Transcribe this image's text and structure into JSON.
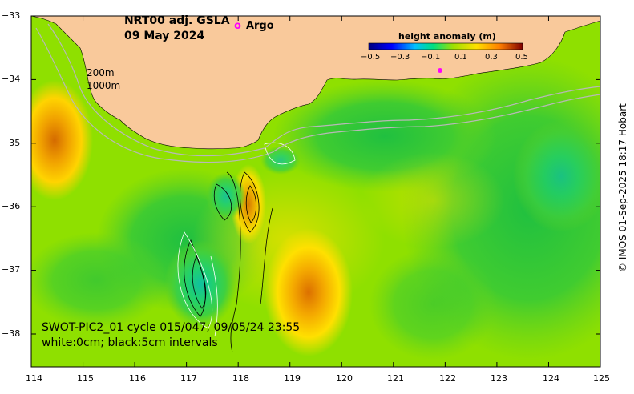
{
  "title": {
    "line1": "NRT00 adj. GSLA",
    "line2": "09 May 2024"
  },
  "legend": {
    "argo_marker": "o",
    "argo_label": "Argo"
  },
  "isobaths": {
    "shallow": "200m",
    "deep": "1000m"
  },
  "swath": {
    "pass_label": "SWOT-PIC2_01 cycle 015/047; 09/05/24 23:55",
    "contour_note": "white:0cm; black:5cm intervals"
  },
  "credit": "© IMOS 01-Sep-2025 18:17 Hobart",
  "colorbar": {
    "title": "height anomaly (m)",
    "ticks": [
      "−0.5",
      "−0.3",
      "−0.1",
      "0.1",
      "0.3",
      "0.5"
    ]
  },
  "axes": {
    "x_ticks": [
      "114",
      "115",
      "116",
      "117",
      "118",
      "119",
      "120",
      "121",
      "122",
      "123",
      "124",
      "125"
    ],
    "y_ticks": [
      "−33",
      "−34",
      "−35",
      "−36",
      "−37",
      "−38"
    ]
  },
  "colors": {
    "land": "#f9c99b",
    "sea_base": "#8fe000",
    "argo": "#ff00ff"
  }
}
